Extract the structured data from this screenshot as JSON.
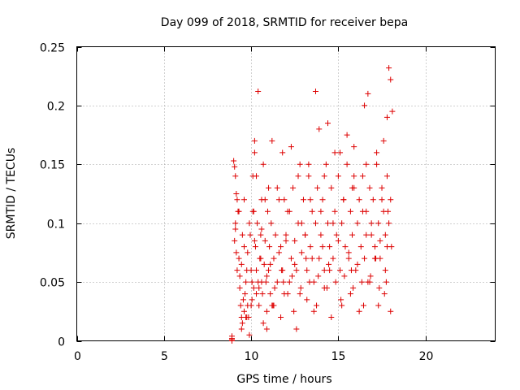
{
  "chart_data": {
    "type": "scatter",
    "title": "Day 099 of 2018, SRMTID for receiver bepa",
    "xlabel": "GPS time / hours",
    "ylabel": "SRMTID / TECUs",
    "xlim": [
      0,
      24
    ],
    "ylim": [
      0,
      0.25
    ],
    "xticks": [
      0,
      5,
      10,
      15,
      20
    ],
    "yticks": [
      0,
      0.05,
      0.1,
      0.15,
      0.2,
      0.25
    ],
    "xtick_labels": [
      "0",
      "5",
      "10",
      "15",
      "20"
    ],
    "ytick_labels": [
      "0",
      "0.05",
      "0.1",
      "0.15",
      "0.2",
      "0.25"
    ],
    "grid": true,
    "marker": "+",
    "color": "#dd0000",
    "series": [
      {
        "name": "SRMTID",
        "x": [
          8.9,
          8.9,
          8.9,
          8.9,
          9.0,
          9.05,
          9.1,
          9.15,
          9.2,
          9.1,
          9.05,
          9.15,
          9.25,
          9.2,
          9.1,
          9.3,
          9.35,
          9.4,
          9.45,
          9.5,
          9.35,
          9.55,
          9.6,
          9.45,
          9.65,
          9.7,
          9.75,
          9.8,
          9.6,
          9.85,
          9.9,
          9.95,
          10.0,
          10.05,
          10.1,
          10.15,
          10.2,
          10.25,
          10.3,
          10.35,
          10.4,
          10.45,
          10.5,
          10.55,
          10.6,
          10.65,
          10.7,
          10.75,
          10.8,
          10.85,
          10.9,
          10.95,
          11.0,
          11.05,
          11.1,
          11.15,
          11.2,
          11.3,
          11.4,
          11.5,
          11.6,
          11.7,
          11.8,
          11.9,
          12.0,
          12.1,
          12.2,
          12.3,
          12.4,
          12.5,
          12.6,
          12.7,
          12.8,
          12.9,
          13.0,
          13.1,
          13.2,
          13.3,
          13.4,
          13.5,
          13.6,
          13.7,
          13.8,
          13.9,
          14.0,
          14.1,
          14.2,
          14.3,
          14.4,
          14.5,
          14.6,
          14.7,
          14.8,
          14.9,
          15.0,
          15.1,
          15.2,
          15.3,
          15.4,
          15.5,
          15.6,
          15.7,
          15.8,
          15.9,
          16.0,
          16.1,
          16.2,
          16.3,
          16.4,
          16.5,
          16.6,
          16.7,
          16.8,
          16.9,
          17.0,
          17.1,
          17.2,
          17.3,
          17.4,
          17.5,
          17.6,
          17.7,
          17.8,
          17.9,
          18.0,
          18.05,
          10.4,
          13.7,
          14.4,
          16.7,
          17.9,
          18.0,
          18.1,
          17.6,
          17.8,
          16.5,
          15.9,
          15.5,
          14.8,
          13.9,
          12.8,
          12.3,
          11.8,
          11.2,
          10.7,
          10.2,
          9.7,
          10.0,
          10.3,
          10.6,
          10.9,
          11.3,
          11.7,
          12.1,
          12.6,
          13.2,
          13.6,
          14.2,
          14.6,
          15.2,
          15.7,
          16.2,
          16.8,
          17.3,
          17.7,
          18.0,
          9.9,
          10.1,
          10.8,
          11.5,
          12.2,
          12.9,
          13.4,
          14.0,
          14.7,
          15.3,
          15.8,
          16.4,
          16.9,
          17.5,
          17.85,
          9.5,
          9.8,
          10.2,
          10.6,
          11.1,
          11.6,
          12.0,
          12.5,
          13.1,
          13.5,
          14.1,
          14.5,
          15.0,
          15.6,
          16.1,
          16.6,
          17.1,
          17.4,
          17.8,
          9.3,
          9.6,
          10.05,
          10.45,
          10.9,
          11.35,
          11.85,
          12.35,
          12.85,
          13.35,
          13.85,
          14.35,
          14.85,
          15.35,
          15.85,
          16.35,
          16.85,
          17.35,
          17.75,
          10.3,
          11.0,
          11.9,
          12.7,
          13.3,
          14.2,
          15.1,
          15.9,
          16.6,
          17.2,
          9.45,
          9.75,
          10.15,
          10.55,
          11.25,
          11.75,
          12.45,
          13.15,
          13.75,
          14.45,
          15.15,
          15.75,
          16.45,
          17.15,
          17.65
        ],
        "y": [
          0.0,
          0.002,
          0.004,
          0.001,
          0.153,
          0.148,
          0.14,
          0.125,
          0.12,
          0.1,
          0.085,
          0.075,
          0.11,
          0.06,
          0.095,
          0.07,
          0.045,
          0.03,
          0.02,
          0.015,
          0.055,
          0.035,
          0.025,
          0.01,
          0.04,
          0.05,
          0.06,
          0.03,
          0.08,
          0.02,
          0.005,
          0.09,
          0.06,
          0.035,
          0.14,
          0.11,
          0.17,
          0.08,
          0.06,
          0.1,
          0.05,
          0.03,
          0.07,
          0.09,
          0.12,
          0.04,
          0.015,
          0.065,
          0.085,
          0.05,
          0.025,
          0.11,
          0.06,
          0.08,
          0.04,
          0.1,
          0.03,
          0.07,
          0.09,
          0.05,
          0.12,
          0.08,
          0.06,
          0.04,
          0.09,
          0.11,
          0.05,
          0.07,
          0.13,
          0.085,
          0.06,
          0.1,
          0.04,
          0.075,
          0.12,
          0.09,
          0.06,
          0.14,
          0.08,
          0.11,
          0.05,
          0.1,
          0.13,
          0.07,
          0.09,
          0.12,
          0.06,
          0.15,
          0.1,
          0.08,
          0.13,
          0.07,
          0.11,
          0.09,
          0.14,
          0.06,
          0.1,
          0.12,
          0.08,
          0.15,
          0.07,
          0.11,
          0.09,
          0.13,
          0.06,
          0.1,
          0.12,
          0.08,
          0.14,
          0.07,
          0.11,
          0.05,
          0.13,
          0.09,
          0.12,
          0.08,
          0.15,
          0.1,
          0.07,
          0.13,
          0.11,
          0.09,
          0.14,
          0.1,
          0.12,
          0.08,
          0.212,
          0.212,
          0.185,
          0.21,
          0.232,
          0.222,
          0.195,
          0.17,
          0.19,
          0.2,
          0.165,
          0.175,
          0.16,
          0.18,
          0.15,
          0.165,
          0.16,
          0.17,
          0.15,
          0.16,
          0.02,
          0.03,
          0.04,
          0.05,
          0.01,
          0.03,
          0.02,
          0.04,
          0.01,
          0.035,
          0.025,
          0.045,
          0.02,
          0.03,
          0.04,
          0.025,
          0.05,
          0.03,
          0.06,
          0.025,
          0.1,
          0.11,
          0.12,
          0.13,
          0.11,
          0.1,
          0.12,
          0.11,
          0.1,
          0.12,
          0.13,
          0.11,
          0.1,
          0.12,
          0.11,
          0.09,
          0.075,
          0.085,
          0.095,
          0.065,
          0.075,
          0.085,
          0.065,
          0.09,
          0.07,
          0.08,
          0.06,
          0.085,
          0.075,
          0.065,
          0.09,
          0.07,
          0.085,
          0.08,
          0.11,
          0.12,
          0.05,
          0.045,
          0.055,
          0.045,
          0.05,
          0.055,
          0.045,
          0.05,
          0.055,
          0.045,
          0.05,
          0.055,
          0.045,
          0.05,
          0.055,
          0.045,
          0.05,
          0.14,
          0.13,
          0.12,
          0.14,
          0.15,
          0.14,
          0.16,
          0.14,
          0.15,
          0.16,
          0.065,
          0.02,
          0.045,
          0.07,
          0.03,
          0.06,
          0.025,
          0.07,
          0.03,
          0.065,
          0.035,
          0.06,
          0.03,
          0.07,
          0.04
        ]
      }
    ]
  }
}
